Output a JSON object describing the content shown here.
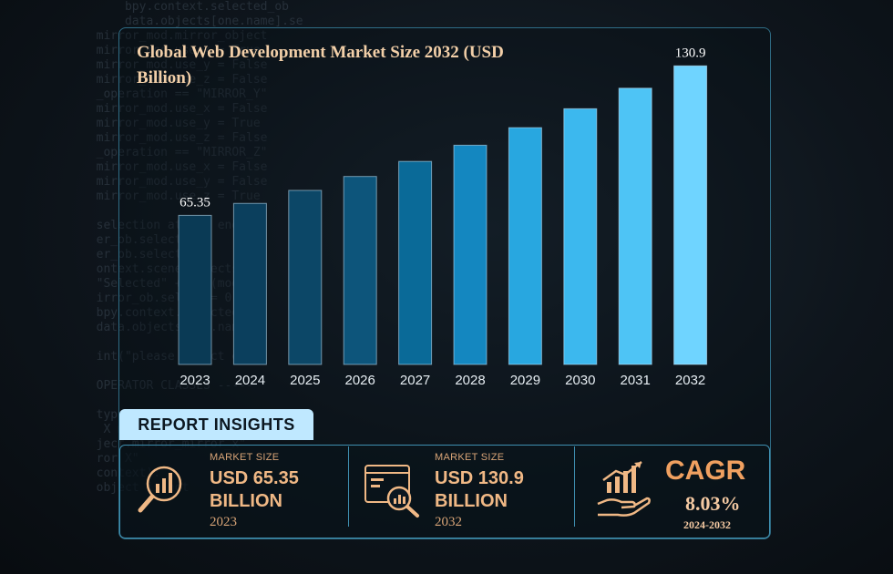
{
  "chart_data": {
    "type": "bar",
    "title": "Global Web Development Market Size 2032 (USD Billion)",
    "categories": [
      "2023",
      "2024",
      "2025",
      "2026",
      "2027",
      "2028",
      "2029",
      "2030",
      "2031",
      "2032"
    ],
    "values": [
      65.35,
      70.6,
      76.3,
      82.4,
      89.0,
      96.1,
      103.8,
      112.1,
      121.1,
      130.9
    ],
    "data_labels": [
      "65.35",
      "",
      "",
      "",
      "",
      "",
      "",
      "",
      "",
      "130.9"
    ],
    "ylim": [
      0,
      135
    ],
    "grid": false,
    "bar_colors": [
      "#0a3a55",
      "#0b3f5d",
      "#0c4767",
      "#0d557b",
      "#0a6a98",
      "#1487c0",
      "#28a7e0",
      "#3cb8ee",
      "#4ec4f5",
      "#6fd4ff"
    ]
  },
  "insights": {
    "tab_label": "REPORT INSIGHTS",
    "market_size_2023": {
      "label": "MARKET SIZE",
      "value_line1": "USD 65.35",
      "value_line2": "BILLION",
      "year": "2023"
    },
    "market_size_2032": {
      "label": "MARKET SIZE",
      "value_line1": "USD 130.9",
      "value_line2": "BILLION",
      "year": "2032"
    },
    "cagr": {
      "title": "CAGR",
      "value": "8.03%",
      "range": "2024-2032"
    }
  },
  "colors": {
    "accent": "#f0b885",
    "border": "#3f8fb0",
    "tab": "#bfe8ff"
  }
}
